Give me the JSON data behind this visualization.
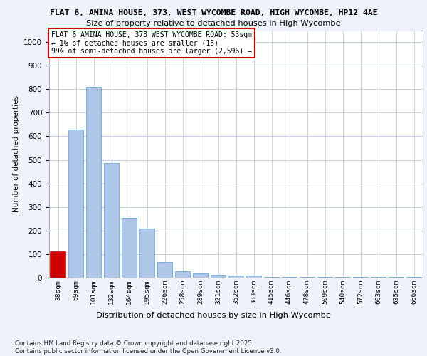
{
  "title_line1": "FLAT 6, AMINA HOUSE, 373, WEST WYCOMBE ROAD, HIGH WYCOMBE, HP12 4AE",
  "title_line2": "Size of property relative to detached houses in High Wycombe",
  "xlabel": "Distribution of detached houses by size in High Wycombe",
  "ylabel": "Number of detached properties",
  "categories": [
    "38sqm",
    "69sqm",
    "101sqm",
    "132sqm",
    "164sqm",
    "195sqm",
    "226sqm",
    "258sqm",
    "289sqm",
    "321sqm",
    "352sqm",
    "383sqm",
    "415sqm",
    "446sqm",
    "478sqm",
    "509sqm",
    "540sqm",
    "572sqm",
    "603sqm",
    "635sqm",
    "666sqm"
  ],
  "values": [
    110,
    630,
    810,
    485,
    255,
    210,
    65,
    27,
    18,
    12,
    10,
    10,
    2,
    2,
    2,
    2,
    2,
    2,
    2,
    2,
    2
  ],
  "bar_color": "#aec6e8",
  "bar_edge_color": "#6aaad4",
  "highlight_bar_index": 0,
  "highlight_color": "#cc0000",
  "highlight_edge_color": "#cc0000",
  "annotation_text": "FLAT 6 AMINA HOUSE, 373 WEST WYCOMBE ROAD: 53sqm\n← 1% of detached houses are smaller (15)\n99% of semi-detached houses are larger (2,596) →",
  "annotation_box_color": "#ffffff",
  "annotation_box_edge_color": "#cc0000",
  "ylim": [
    0,
    1050
  ],
  "yticks": [
    0,
    100,
    200,
    300,
    400,
    500,
    600,
    700,
    800,
    900,
    1000
  ],
  "footer_text": "Contains HM Land Registry data © Crown copyright and database right 2025.\nContains public sector information licensed under the Open Government Licence v3.0.",
  "bg_color": "#eef2fa",
  "plot_bg_color": "#ffffff",
  "grid_color": "#c8d0e8"
}
